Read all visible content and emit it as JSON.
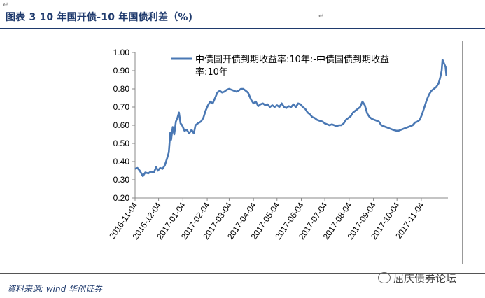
{
  "figure": {
    "title": "图表 3 10 年国开债-10 年国债利差（%)",
    "source": "资料来源: wind  华创证券",
    "watermark": "屈庆债券论坛",
    "return_mark": "↵"
  },
  "chart_data": {
    "type": "line",
    "title": "",
    "xlabel": "",
    "ylabel": "",
    "ylim": [
      0.2,
      1.0
    ],
    "yticks": [
      "1.00",
      "0.90",
      "0.80",
      "0.70",
      "0.60",
      "0.50",
      "0.40",
      "0.30",
      "0.20"
    ],
    "ytick_values": [
      1.0,
      0.9,
      0.8,
      0.7,
      0.6,
      0.5,
      0.4,
      0.3,
      0.2
    ],
    "xlim": [
      "2016-11-04",
      "2017-12-08"
    ],
    "xticks": [
      "2016-11-04",
      "2016-12-04",
      "2017-01-04",
      "2017-02-04",
      "2017-03-04",
      "2017-04-04",
      "2017-05-04",
      "2017-06-04",
      "2017-07-04",
      "2017-08-04",
      "2017-09-04",
      "2017-10-04",
      "2017-11-04"
    ],
    "legend": {
      "position": "top",
      "label_line1": "中债国开债到期收益率:10年:-中债国债到期收益",
      "label_line2": "率:10年"
    },
    "series_color": "#4a78b4",
    "grid": false,
    "series": [
      {
        "name": "中债国开债到期收益率:10年:-中债国债到期收益率:10年",
        "points": [
          [
            "2016-11-04",
            0.36
          ],
          [
            "2016-11-07",
            0.365
          ],
          [
            "2016-11-10",
            0.35
          ],
          [
            "2016-11-14",
            0.32
          ],
          [
            "2016-11-17",
            0.34
          ],
          [
            "2016-11-21",
            0.335
          ],
          [
            "2016-11-24",
            0.345
          ],
          [
            "2016-11-28",
            0.34
          ],
          [
            "2016-12-01",
            0.37
          ],
          [
            "2016-12-03",
            0.35
          ],
          [
            "2016-12-06",
            0.365
          ],
          [
            "2016-12-09",
            0.36
          ],
          [
            "2016-12-12",
            0.38
          ],
          [
            "2016-12-15",
            0.42
          ],
          [
            "2016-12-17",
            0.45
          ],
          [
            "2016-12-19",
            0.56
          ],
          [
            "2016-12-20",
            0.52
          ],
          [
            "2016-12-22",
            0.59
          ],
          [
            "2016-12-24",
            0.55
          ],
          [
            "2016-12-26",
            0.62
          ],
          [
            "2016-12-28",
            0.64
          ],
          [
            "2016-12-30",
            0.67
          ],
          [
            "2017-01-01",
            0.61
          ],
          [
            "2017-01-03",
            0.6
          ],
          [
            "2017-01-06",
            0.57
          ],
          [
            "2017-01-09",
            0.575
          ],
          [
            "2017-01-12",
            0.555
          ],
          [
            "2017-01-15",
            0.575
          ],
          [
            "2017-01-18",
            0.555
          ],
          [
            "2017-01-20",
            0.6
          ],
          [
            "2017-01-23",
            0.61
          ],
          [
            "2017-01-27",
            0.62
          ],
          [
            "2017-01-30",
            0.64
          ],
          [
            "2017-02-02",
            0.68
          ],
          [
            "2017-02-05",
            0.71
          ],
          [
            "2017-02-08",
            0.73
          ],
          [
            "2017-02-11",
            0.72
          ],
          [
            "2017-02-14",
            0.75
          ],
          [
            "2017-02-17",
            0.78
          ],
          [
            "2017-02-20",
            0.79
          ],
          [
            "2017-02-23",
            0.78
          ],
          [
            "2017-02-26",
            0.785
          ],
          [
            "2017-03-01",
            0.795
          ],
          [
            "2017-03-04",
            0.8
          ],
          [
            "2017-03-07",
            0.795
          ],
          [
            "2017-03-10",
            0.79
          ],
          [
            "2017-03-13",
            0.785
          ],
          [
            "2017-03-16",
            0.79
          ],
          [
            "2017-03-19",
            0.8
          ],
          [
            "2017-03-22",
            0.8
          ],
          [
            "2017-03-25",
            0.79
          ],
          [
            "2017-03-28",
            0.78
          ],
          [
            "2017-04-01",
            0.74
          ],
          [
            "2017-04-04",
            0.72
          ],
          [
            "2017-04-07",
            0.73
          ],
          [
            "2017-04-10",
            0.705
          ],
          [
            "2017-04-13",
            0.715
          ],
          [
            "2017-04-16",
            0.72
          ],
          [
            "2017-04-19",
            0.71
          ],
          [
            "2017-04-22",
            0.715
          ],
          [
            "2017-04-25",
            0.7
          ],
          [
            "2017-04-28",
            0.71
          ],
          [
            "2017-05-01",
            0.7
          ],
          [
            "2017-05-04",
            0.71
          ],
          [
            "2017-05-07",
            0.7
          ],
          [
            "2017-05-10",
            0.72
          ],
          [
            "2017-05-13",
            0.7
          ],
          [
            "2017-05-16",
            0.695
          ],
          [
            "2017-05-19",
            0.705
          ],
          [
            "2017-05-22",
            0.7
          ],
          [
            "2017-05-25",
            0.715
          ],
          [
            "2017-05-28",
            0.7
          ],
          [
            "2017-05-31",
            0.72
          ],
          [
            "2017-06-03",
            0.715
          ],
          [
            "2017-06-06",
            0.7
          ],
          [
            "2017-06-09",
            0.69
          ],
          [
            "2017-06-12",
            0.67
          ],
          [
            "2017-06-15",
            0.66
          ],
          [
            "2017-06-18",
            0.645
          ],
          [
            "2017-06-21",
            0.64
          ],
          [
            "2017-06-24",
            0.63
          ],
          [
            "2017-06-27",
            0.625
          ],
          [
            "2017-07-01",
            0.62
          ],
          [
            "2017-07-04",
            0.61
          ],
          [
            "2017-07-07",
            0.605
          ],
          [
            "2017-07-10",
            0.6
          ],
          [
            "2017-07-13",
            0.605
          ],
          [
            "2017-07-16",
            0.6
          ],
          [
            "2017-07-19",
            0.595
          ],
          [
            "2017-07-22",
            0.6
          ],
          [
            "2017-07-25",
            0.6
          ],
          [
            "2017-07-28",
            0.61
          ],
          [
            "2017-07-31",
            0.63
          ],
          [
            "2017-08-03",
            0.64
          ],
          [
            "2017-08-06",
            0.65
          ],
          [
            "2017-08-09",
            0.67
          ],
          [
            "2017-08-12",
            0.68
          ],
          [
            "2017-08-15",
            0.69
          ],
          [
            "2017-08-18",
            0.7
          ],
          [
            "2017-08-21",
            0.73
          ],
          [
            "2017-08-24",
            0.71
          ],
          [
            "2017-08-27",
            0.665
          ],
          [
            "2017-08-30",
            0.645
          ],
          [
            "2017-09-02",
            0.635
          ],
          [
            "2017-09-05",
            0.63
          ],
          [
            "2017-09-08",
            0.625
          ],
          [
            "2017-09-11",
            0.62
          ],
          [
            "2017-09-14",
            0.6
          ],
          [
            "2017-09-17",
            0.595
          ],
          [
            "2017-09-20",
            0.59
          ],
          [
            "2017-09-23",
            0.585
          ],
          [
            "2017-09-26",
            0.58
          ],
          [
            "2017-09-29",
            0.575
          ],
          [
            "2017-10-03",
            0.57
          ],
          [
            "2017-10-06",
            0.57
          ],
          [
            "2017-10-09",
            0.575
          ],
          [
            "2017-10-12",
            0.58
          ],
          [
            "2017-10-15",
            0.585
          ],
          [
            "2017-10-18",
            0.59
          ],
          [
            "2017-10-21",
            0.595
          ],
          [
            "2017-10-24",
            0.6
          ],
          [
            "2017-10-27",
            0.615
          ],
          [
            "2017-10-30",
            0.62
          ],
          [
            "2017-11-02",
            0.63
          ],
          [
            "2017-11-05",
            0.66
          ],
          [
            "2017-11-08",
            0.7
          ],
          [
            "2017-11-11",
            0.74
          ],
          [
            "2017-11-14",
            0.77
          ],
          [
            "2017-11-17",
            0.79
          ],
          [
            "2017-11-20",
            0.8
          ],
          [
            "2017-11-23",
            0.81
          ],
          [
            "2017-11-26",
            0.83
          ],
          [
            "2017-11-28",
            0.86
          ],
          [
            "2017-11-30",
            0.9
          ],
          [
            "2017-12-01",
            0.96
          ],
          [
            "2017-12-03",
            0.94
          ],
          [
            "2017-12-05",
            0.92
          ],
          [
            "2017-12-06",
            0.87
          ]
        ]
      }
    ]
  }
}
